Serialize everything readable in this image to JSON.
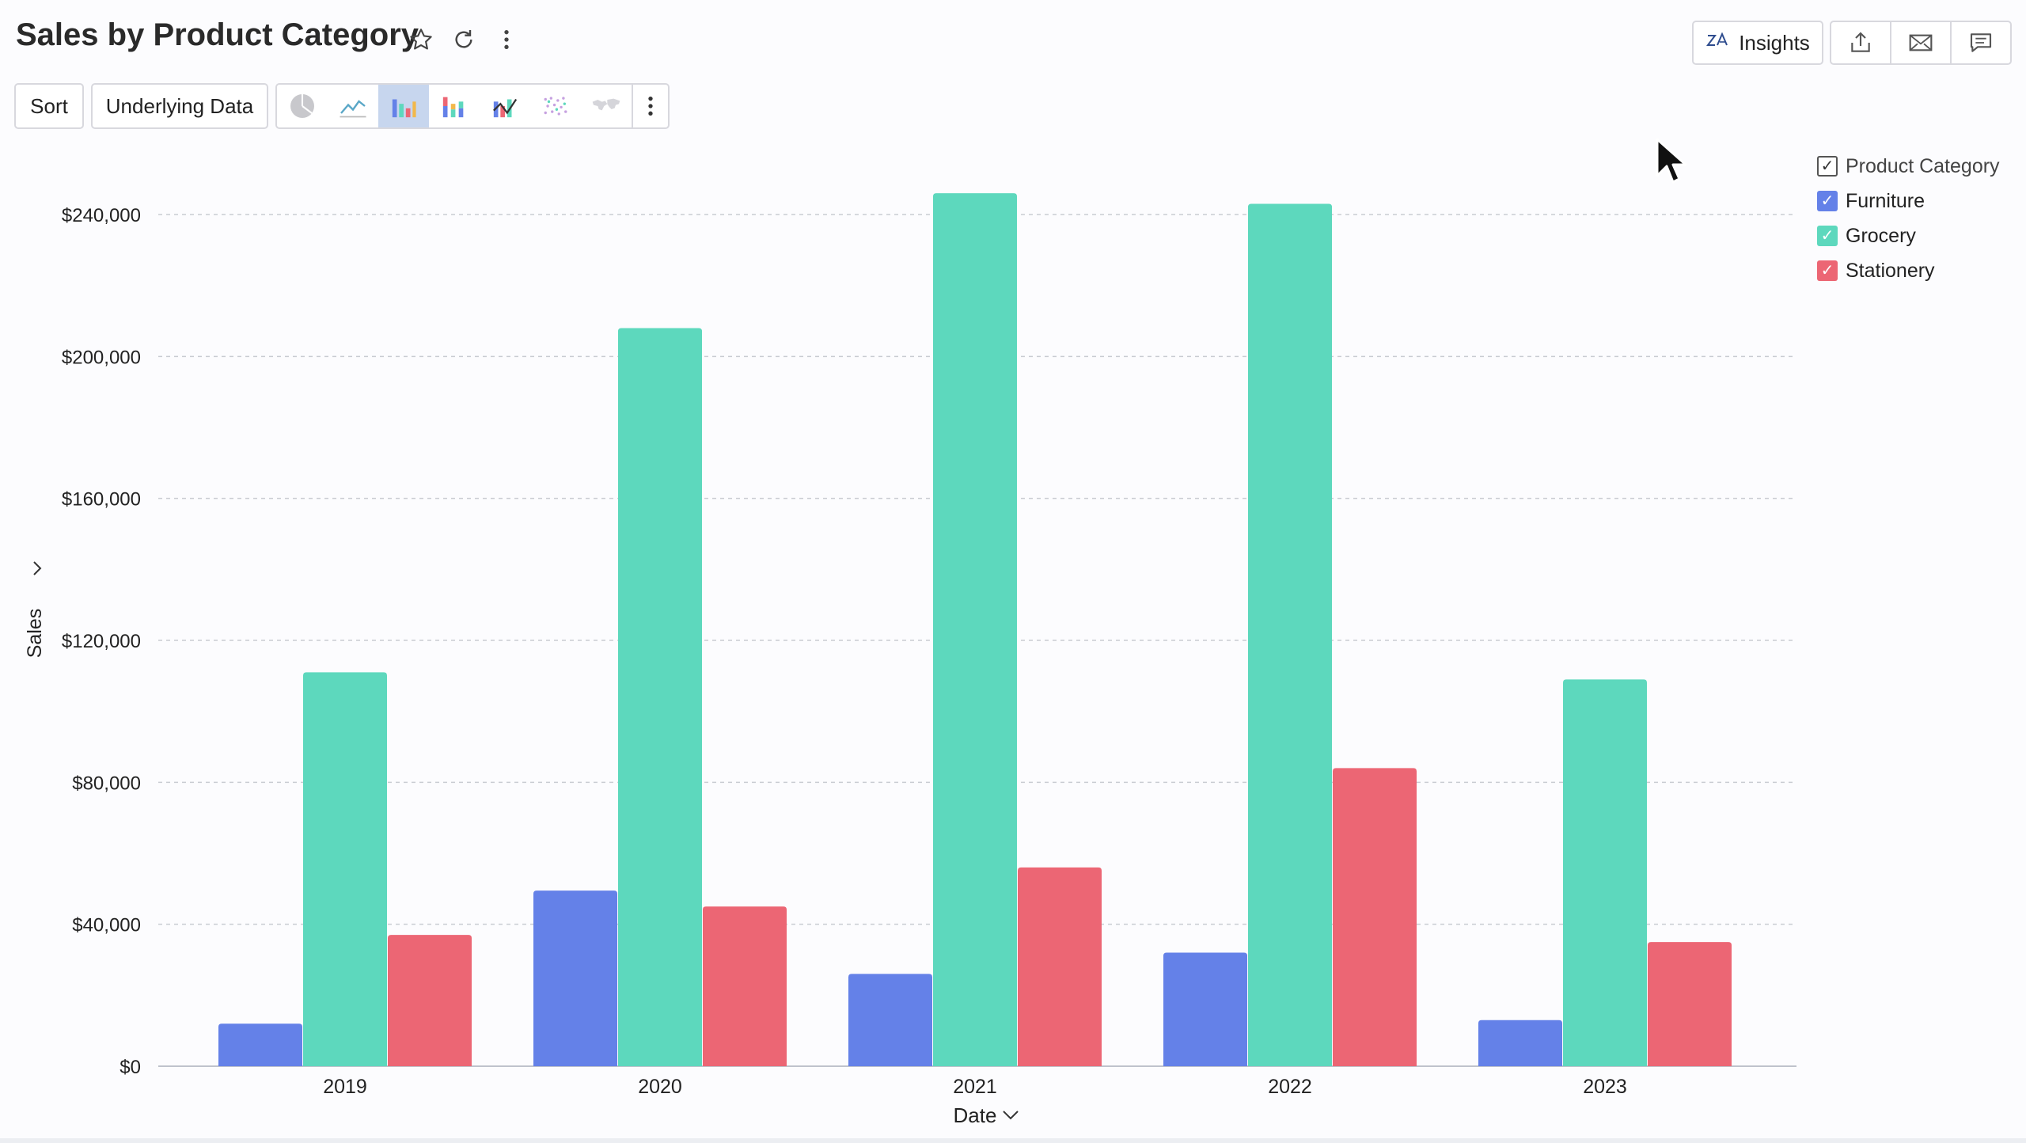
{
  "header": {
    "title": "Sales by Product Category",
    "icons": [
      "star-icon",
      "refresh-icon",
      "more-vertical-icon"
    ]
  },
  "toolbar": {
    "sort_label": "Sort",
    "underlying_label": "Underlying Data",
    "chart_types": [
      "pie-chart-icon",
      "line-chart-icon",
      "bar-chart-icon",
      "stacked-bar-icon",
      "combo-chart-icon",
      "scatter-chart-icon",
      "map-chart-icon"
    ],
    "active_chart_type": "bar-chart-icon"
  },
  "right_tools": {
    "insights_label": "Insights",
    "icons": [
      "share-icon",
      "email-icon",
      "comment-icon"
    ]
  },
  "legend": {
    "title": "Product Category",
    "items": [
      {
        "label": "Furniture",
        "color": "#6481e8",
        "checked": true
      },
      {
        "label": "Grocery",
        "color": "#5dd8bd",
        "checked": true
      },
      {
        "label": "Stationery",
        "color": "#ec6674",
        "checked": true
      }
    ]
  },
  "chart_data": {
    "type": "bar",
    "title": "Sales by Product Category",
    "xlabel": "Date",
    "ylabel": "Sales",
    "categories": [
      "2019",
      "2020",
      "2021",
      "2022",
      "2023"
    ],
    "series": [
      {
        "name": "Furniture",
        "color": "#6481e8",
        "values": [
          12000,
          49500,
          26000,
          32000,
          13000
        ]
      },
      {
        "name": "Grocery",
        "color": "#5dd8bd",
        "values": [
          111000,
          208000,
          246000,
          243000,
          109000
        ]
      },
      {
        "name": "Stationery",
        "color": "#ec6674",
        "values": [
          37000,
          45000,
          56000,
          84000,
          35000
        ]
      }
    ],
    "ylim": [
      0,
      240000
    ],
    "yticks": [
      0,
      40000,
      80000,
      120000,
      160000,
      200000,
      240000
    ],
    "ytick_labels": [
      "$0",
      "$40,000",
      "$80,000",
      "$120,000",
      "$160,000",
      "$200,000",
      "$240,000"
    ],
    "grid": true,
    "legend_position": "top-right"
  }
}
